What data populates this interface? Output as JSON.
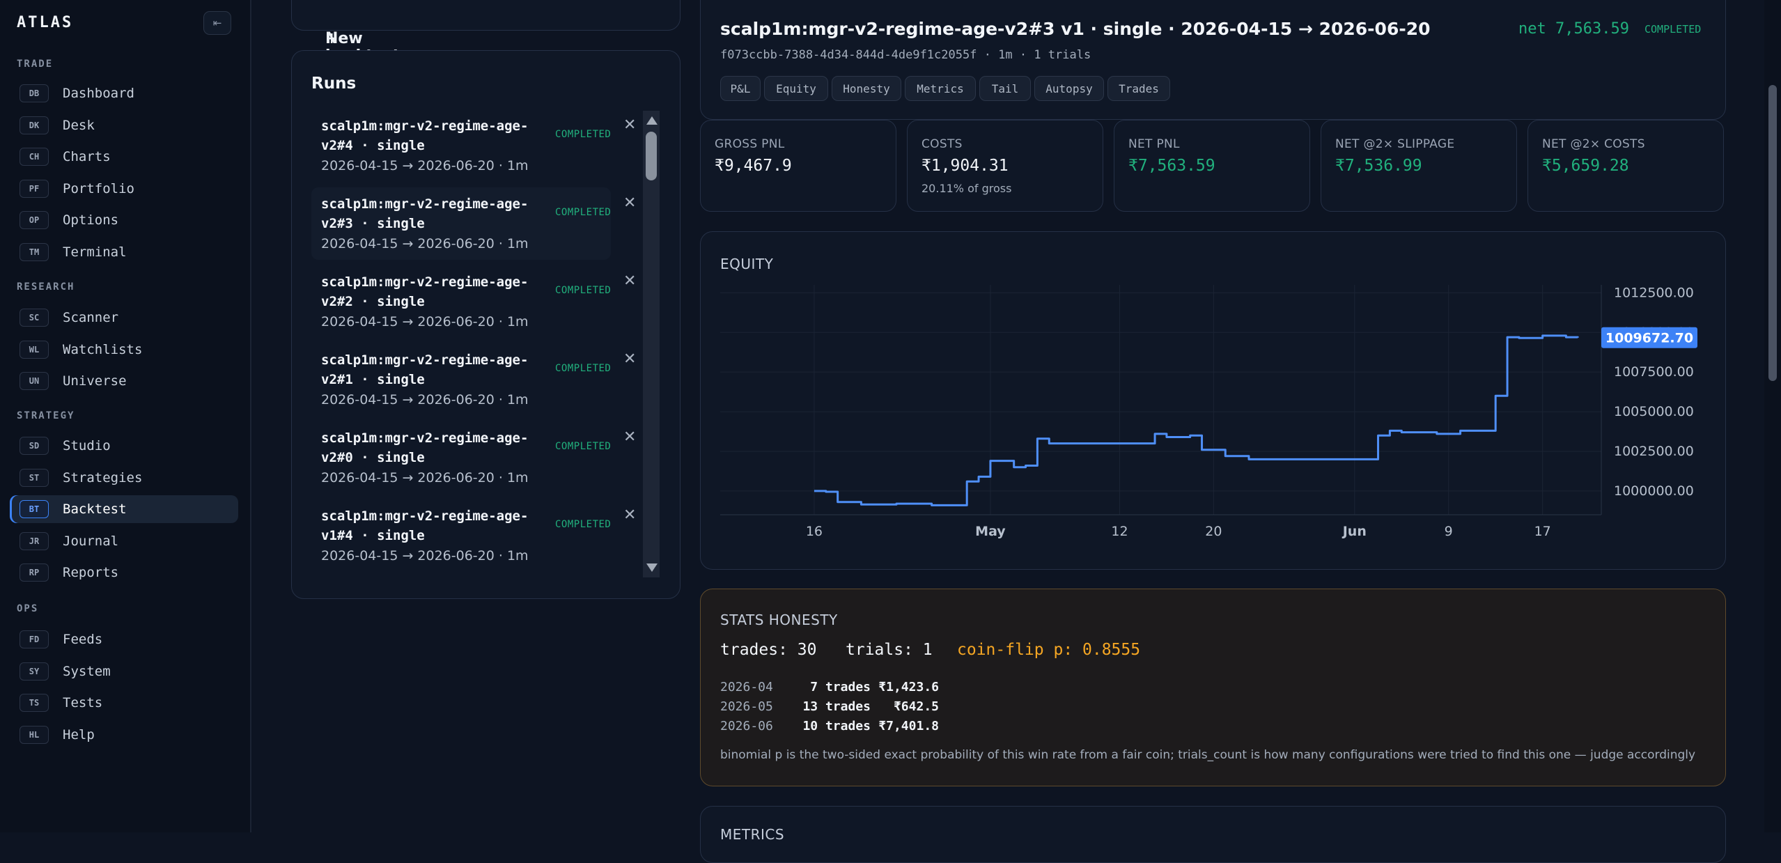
{
  "sidebar": {
    "brand": "ATLAS",
    "collapse_icon": "⇤",
    "sections": [
      {
        "title": "TRADE",
        "items": [
          {
            "badge": "DB",
            "label": "Dashboard"
          },
          {
            "badge": "DK",
            "label": "Desk"
          },
          {
            "badge": "CH",
            "label": "Charts"
          },
          {
            "badge": "PF",
            "label": "Portfolio"
          },
          {
            "badge": "OP",
            "label": "Options"
          },
          {
            "badge": "TM",
            "label": "Terminal"
          }
        ]
      },
      {
        "title": "RESEARCH",
        "items": [
          {
            "badge": "SC",
            "label": "Scanner"
          },
          {
            "badge": "WL",
            "label": "Watchlists"
          },
          {
            "badge": "UN",
            "label": "Universe"
          }
        ]
      },
      {
        "title": "STRATEGY",
        "items": [
          {
            "badge": "SD",
            "label": "Studio"
          },
          {
            "badge": "ST",
            "label": "Strategies"
          },
          {
            "badge": "BT",
            "label": "Backtest",
            "active": true
          },
          {
            "badge": "JR",
            "label": "Journal"
          },
          {
            "badge": "RP",
            "label": "Reports"
          }
        ]
      },
      {
        "title": "OPS",
        "items": [
          {
            "badge": "FD",
            "label": "Feeds"
          },
          {
            "badge": "SY",
            "label": "System"
          },
          {
            "badge": "TS",
            "label": "Tests"
          },
          {
            "badge": "HL",
            "label": "Help"
          }
        ]
      }
    ]
  },
  "new_backtest": {
    "icon": "+",
    "label": "New backtest"
  },
  "runs": {
    "title": "Runs",
    "items": [
      {
        "name": "scalp1m:mgr-v2-regime-age-v2#4 · single",
        "dates": "2026-04-15 → 2026-06-20 · 1m",
        "status": "COMPLETED"
      },
      {
        "name": "scalp1m:mgr-v2-regime-age-v2#3 · single",
        "dates": "2026-04-15 → 2026-06-20 · 1m",
        "status": "COMPLETED",
        "active": true
      },
      {
        "name": "scalp1m:mgr-v2-regime-age-v2#2 · single",
        "dates": "2026-04-15 → 2026-06-20 · 1m",
        "status": "COMPLETED"
      },
      {
        "name": "scalp1m:mgr-v2-regime-age-v2#1 · single",
        "dates": "2026-04-15 → 2026-06-20 · 1m",
        "status": "COMPLETED"
      },
      {
        "name": "scalp1m:mgr-v2-regime-age-v2#0 · single",
        "dates": "2026-04-15 → 2026-06-20 · 1m",
        "status": "COMPLETED"
      },
      {
        "name": "scalp1m:mgr-v2-regime-age-v1#4 · single",
        "dates": "2026-04-15 → 2026-06-20 · 1m",
        "status": "COMPLETED"
      }
    ],
    "close_icon": "✕"
  },
  "header": {
    "title": "scalp1m:mgr-v2-regime-age-v2#3 v1 · single · 2026-04-15 → 2026-06-20",
    "subtitle": "f073ccbb-7388-4d34-844d-4de9f1c2055f · 1m · 1 trials",
    "net": "net 7,563.59",
    "status": "COMPLETED",
    "tabs": [
      "P&L",
      "Equity",
      "Honesty",
      "Metrics",
      "Tail",
      "Autopsy",
      "Trades"
    ]
  },
  "stats": [
    {
      "label": "GROSS PNL",
      "value": "₹9,467.9",
      "sub": ""
    },
    {
      "label": "COSTS",
      "value": "₹1,904.31",
      "sub": "20.11% of gross"
    },
    {
      "label": "NET PNL",
      "value": "₹7,563.59",
      "sub": "",
      "green": true
    },
    {
      "label": "NET @2× SLIPPAGE",
      "value": "₹7,536.99",
      "sub": "",
      "green": true
    },
    {
      "label": "NET @2× COSTS",
      "value": "₹5,659.28",
      "sub": "",
      "green": true
    }
  ],
  "equity": {
    "title": "EQUITY",
    "last_value_label": "1009672.70"
  },
  "chart_data": {
    "type": "line",
    "series": [
      {
        "name": "",
        "color": "#4f8ff7"
      }
    ],
    "x_tick_labels": [
      "16",
      "May",
      "12",
      "20",
      "Jun",
      "9",
      "17"
    ],
    "y_tick_labels": [
      "1012500.00",
      "1010000.00",
      "1007500.00",
      "1005000.00",
      "1002500.00",
      "1000000.00"
    ],
    "ylim": [
      998500,
      1013000
    ],
    "x": [
      "2026-04-16",
      "2026-04-17",
      "2026-04-18",
      "2026-04-20",
      "2026-04-23",
      "2026-04-26",
      "2026-04-28",
      "2026-04-29",
      "2026-04-30",
      "2026-05-01",
      "2026-05-02",
      "2026-05-03",
      "2026-05-04",
      "2026-05-05",
      "2026-05-06",
      "2026-05-08",
      "2026-05-14",
      "2026-05-15",
      "2026-05-16",
      "2026-05-18",
      "2026-05-19",
      "2026-05-21",
      "2026-05-23",
      "2026-05-25",
      "2026-05-28",
      "2026-05-30",
      "2026-06-01",
      "2026-06-03",
      "2026-06-04",
      "2026-06-05",
      "2026-06-08",
      "2026-06-10",
      "2026-06-13",
      "2026-06-14",
      "2026-06-15",
      "2026-06-17",
      "2026-06-19",
      "2026-06-20"
    ],
    "y": [
      1000000,
      999950,
      999300,
      999150,
      999200,
      999100,
      999100,
      1000600,
      1000900,
      1001900,
      1001900,
      1001500,
      1001600,
      1003300,
      1003000,
      1003000,
      1003000,
      1003600,
      1003400,
      1003500,
      1002600,
      1002200,
      1002000,
      1002000,
      1002000,
      1002000,
      1002000,
      1003500,
      1003800,
      1003700,
      1003600,
      1003800,
      1006000,
      1009700,
      1009650,
      1009800,
      1009700,
      1009673
    ]
  },
  "honesty": {
    "title": "STATS HONESTY",
    "main": "trades: 30   trials: 1",
    "coin": "coin-flip p: 0.8555",
    "rows": [
      {
        "month": "2026-04",
        "trades": "7 trades",
        "value": "₹1,423.6"
      },
      {
        "month": "2026-05",
        "trades": "13 trades",
        "value": "₹642.5"
      },
      {
        "month": "2026-06",
        "trades": "10 trades",
        "value": "₹7,401.8"
      }
    ],
    "note": "binomial p is the two-sided exact probability of this win rate from a fair coin; trials_count is how many configurations were tried to find this one — judge accordingly"
  },
  "metrics": {
    "title": "METRICS"
  }
}
